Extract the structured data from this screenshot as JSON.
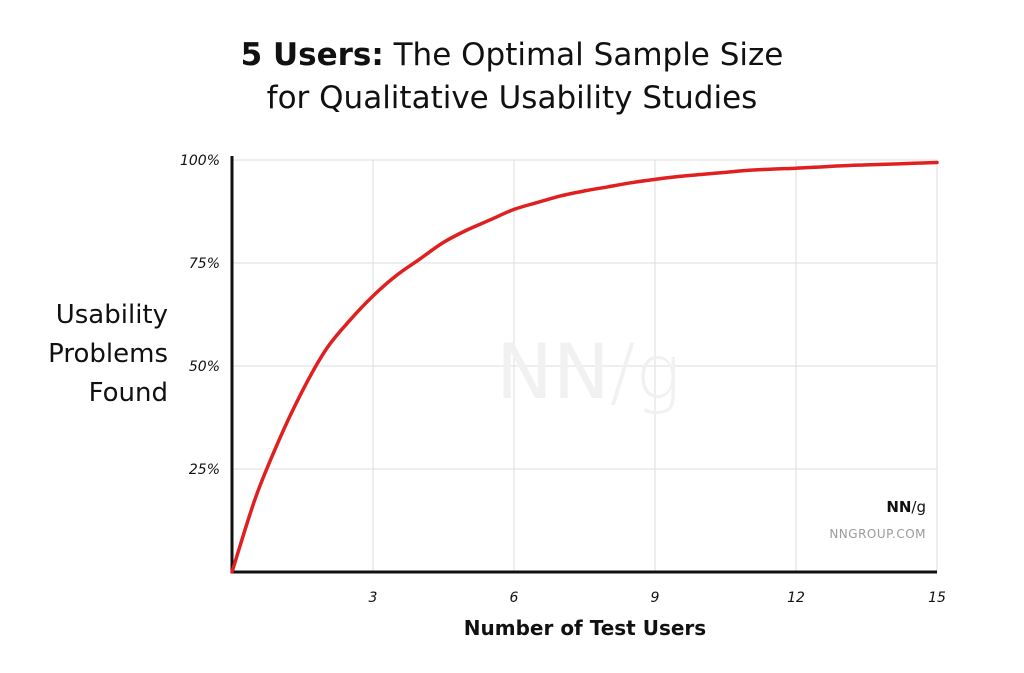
{
  "chart_data": {
    "type": "line",
    "title_bold": "5 Users:",
    "title_rest": "The Optimal Sample Size",
    "title_line2": "for Qualitative Usability Studies",
    "xlabel": "Number of Test Users",
    "ylabel_lines": [
      "Usability",
      "Problems",
      "Found"
    ],
    "xlim": [
      0,
      15
    ],
    "ylim": [
      0,
      100
    ],
    "x_ticks": [
      3,
      6,
      9,
      12,
      15
    ],
    "x_tick_labels": [
      "3",
      "6",
      "9",
      "12",
      "15"
    ],
    "y_ticks": [
      25,
      50,
      75,
      100
    ],
    "y_tick_labels": [
      "25%",
      "50%",
      "75%",
      "100%"
    ],
    "grid": true,
    "series": [
      {
        "color": "#e02020",
        "x": [
          0,
          0.5,
          1,
          1.5,
          2,
          2.5,
          3,
          3.5,
          4,
          4.5,
          5,
          5.5,
          6,
          6.5,
          7,
          7.5,
          8,
          8.5,
          9,
          9.5,
          10,
          10.5,
          11,
          11.5,
          12,
          12.5,
          13,
          13.5,
          14,
          14.5,
          15
        ],
        "y": [
          0,
          18,
          32,
          44,
          54,
          61,
          67,
          72,
          76,
          80,
          83,
          85.5,
          88,
          89.7,
          91.3,
          92.5,
          93.5,
          94.5,
          95.3,
          96,
          96.5,
          97,
          97.5,
          97.8,
          98,
          98.3,
          98.6,
          98.8,
          99,
          99.2,
          99.4
        ]
      }
    ]
  },
  "watermark": {
    "main": "NN",
    "slash": "/g"
  },
  "brand": {
    "logo_main": "NN",
    "logo_suffix": "/g",
    "url": "NNGROUP.COM"
  }
}
